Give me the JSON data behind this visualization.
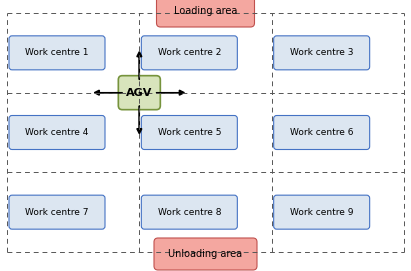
{
  "fig_width": 4.11,
  "fig_height": 2.71,
  "bg_color": "#ffffff",
  "grid_color": "#555555",
  "work_centres": [
    {
      "label": "Work centre 1",
      "col": 0,
      "row": 0
    },
    {
      "label": "Work centre 2",
      "col": 1,
      "row": 0
    },
    {
      "label": "Work centre 3",
      "col": 2,
      "row": 0
    },
    {
      "label": "Work centre 4",
      "col": 0,
      "row": 1
    },
    {
      "label": "Work centre 5",
      "col": 1,
      "row": 1
    },
    {
      "label": "Work centre 6",
      "col": 2,
      "row": 1
    },
    {
      "label": "Work centre 7",
      "col": 0,
      "row": 2
    },
    {
      "label": "Work centre 8",
      "col": 1,
      "row": 2
    },
    {
      "label": "Work centre 9",
      "col": 2,
      "row": 2
    }
  ],
  "wc_box_color": "#dce6f1",
  "wc_box_edge_color": "#4472c4",
  "wc_text_color": "#000000",
  "loading_label": "Loading area",
  "unloading_label": "Unloading area",
  "area_box_color": "#f4a7a0",
  "area_box_edge_color": "#c0504d",
  "agv_label": "AGV",
  "agv_box_color": "#d8e4bc",
  "agv_box_edge_color": "#76933c",
  "arrow_color": "#000000"
}
